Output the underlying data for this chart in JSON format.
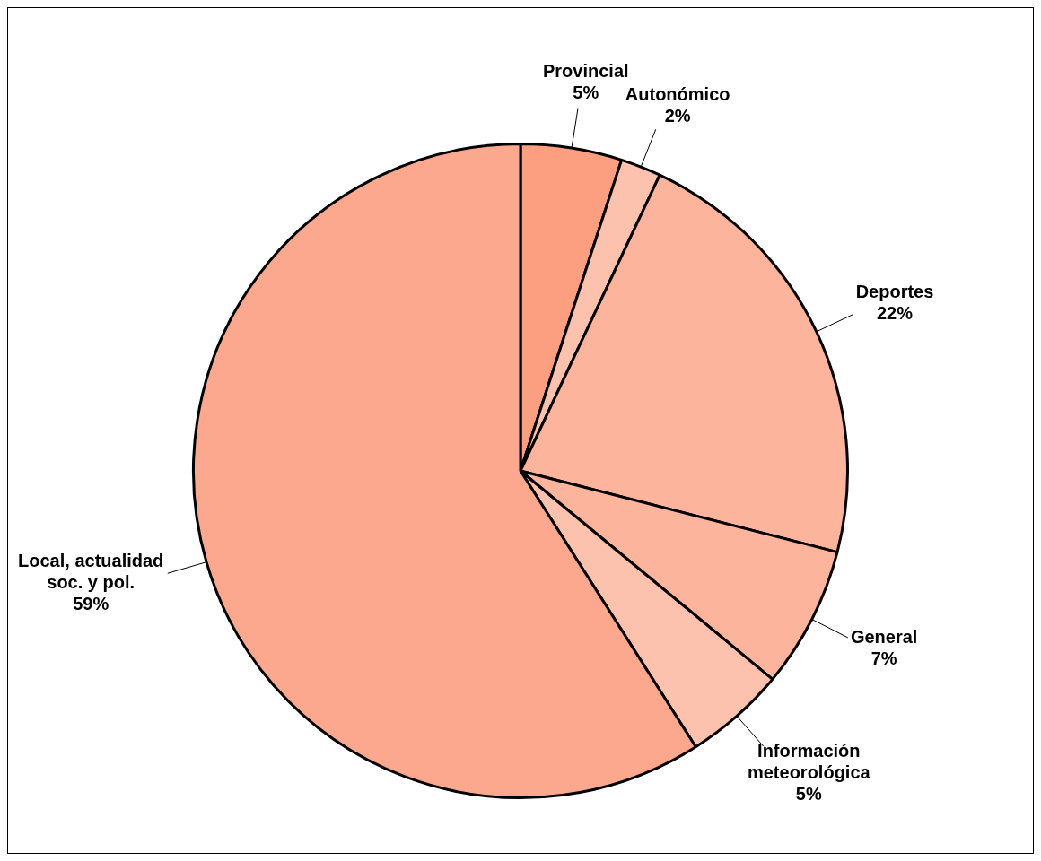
{
  "chart_data": {
    "type": "pie",
    "categories": [
      "Provincial",
      "Autonómico",
      "Deportes",
      "General",
      "Información meteorológica",
      "Local, actualidad soc. y pol."
    ],
    "values": [
      5,
      2,
      22,
      7,
      5,
      59
    ],
    "value_labels": [
      "5%",
      "2%",
      "22%",
      "7%",
      "5%",
      "59%"
    ],
    "colors": [
      "#fc9f80",
      "#fdc2ae",
      "#fdb49d",
      "#fdb49d",
      "#fdc2ae",
      "#fca88e"
    ],
    "legend": false
  }
}
